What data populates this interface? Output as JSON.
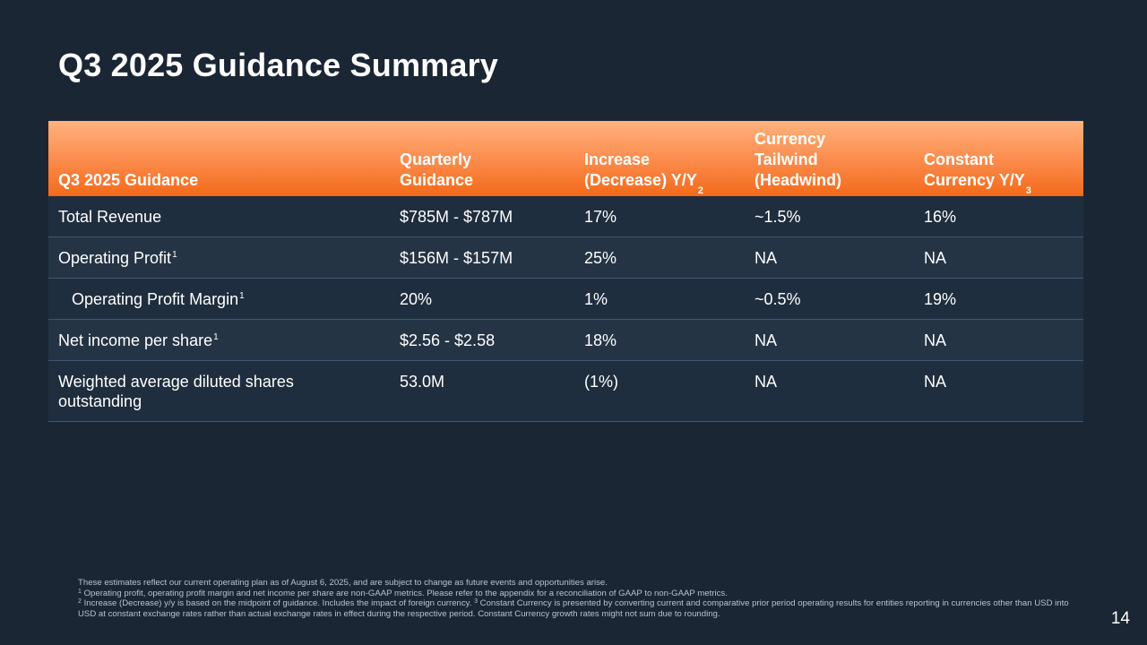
{
  "slide": {
    "title": "Q3 2025 Guidance Summary",
    "page_number": "14"
  },
  "table": {
    "headers": [
      {
        "text": "Q3 2025 Guidance",
        "sup": ""
      },
      {
        "text": "Quarterly\nGuidance",
        "sup": ""
      },
      {
        "text": "Increase\n(Decrease) Y/Y",
        "sup": "2"
      },
      {
        "text": "Currency\nTailwind\n(Headwind)",
        "sup": ""
      },
      {
        "text": "Constant\nCurrency Y/Y",
        "sup": "3"
      }
    ],
    "rows": [
      {
        "metric": "Total Revenue",
        "sup": "",
        "quarterly": "$785M - $787M",
        "yoy": "17%",
        "currency": "~1.5%",
        "constant": "16%"
      },
      {
        "metric": "Operating Profit",
        "sup": "1",
        "quarterly": "$156M - $157M",
        "yoy": "25%",
        "currency": "NA",
        "constant": "NA"
      },
      {
        "metric": "Operating Profit Margin",
        "sup": "1",
        "quarterly": "20%",
        "yoy": "1%",
        "currency": "~0.5%",
        "constant": "19%"
      },
      {
        "metric": "Net income per share",
        "sup": "1",
        "quarterly": "$2.56 - $2.58",
        "yoy": "18%",
        "currency": "NA",
        "constant": "NA"
      },
      {
        "metric": "Weighted average diluted shares outstanding",
        "sup": "",
        "quarterly": "53.0M",
        "yoy": "(1%)",
        "currency": "NA",
        "constant": "NA"
      }
    ]
  },
  "footnotes": {
    "intro": "These estimates reflect our current operating plan as of August 6, 2025, and are subject to change as future events and opportunities arise.",
    "note1_marker": "1",
    "note1": "Operating profit, operating profit margin and net income per share are non-GAAP metrics. Please refer to the appendix for a reconciliation of GAAP to non-GAAP metrics.",
    "note2_marker": "2",
    "note2": "Increase (Decrease) y/y is based on the midpoint of guidance. Includes the impact of foreign currency.",
    "note3_marker": "3",
    "note3": "Constant Currency is presented by converting current and comparative prior period operating results for entities reporting in currencies other than USD into USD at constant exchange rates rather than actual exchange rates in effect during the respective period. Constant Currency growth rates might not sum due to rounding."
  },
  "colors": {
    "background": "#1a2633",
    "header_orange_top": "#ffb27e",
    "header_orange_bottom": "#f46b1b",
    "row_odd": "#1f2e3e",
    "row_even": "#243445",
    "row_divider": "#3f5670"
  }
}
